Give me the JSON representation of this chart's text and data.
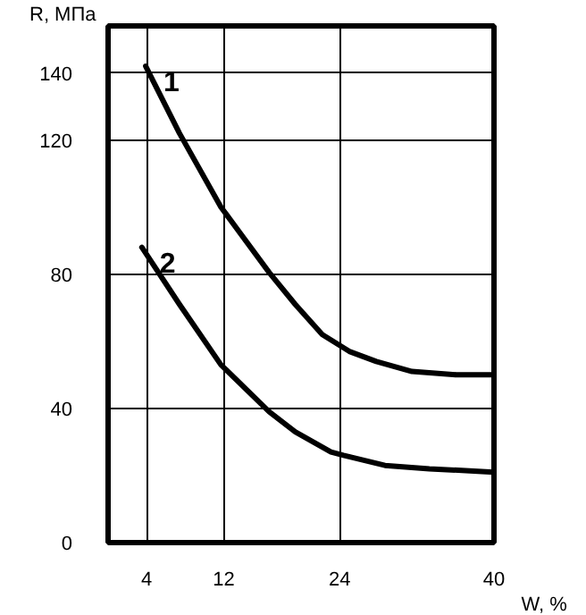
{
  "chart_data": {
    "type": "line",
    "xlabel": "W,  %",
    "ylabel": "R,  МПа",
    "xlim": [
      0,
      40
    ],
    "ylim": [
      0,
      154
    ],
    "xticks": [
      4,
      12,
      24,
      40
    ],
    "yticks": [
      0,
      40,
      80,
      120,
      140
    ],
    "grid": true,
    "line_style": "solid",
    "series": [
      {
        "name": "1",
        "color": "#000000",
        "x": [
          3.9,
          7.4,
          11.7,
          16.7,
          19.4,
          22.2,
          25,
          27.8,
          31.5,
          36.1,
          40
        ],
        "values": [
          142,
          122,
          100,
          80.5,
          71,
          62,
          57,
          54,
          51,
          50,
          50
        ]
      },
      {
        "name": "2",
        "color": "#000000",
        "x": [
          3.5,
          7.4,
          11.7,
          16.7,
          19.4,
          23.1,
          24.4,
          28.7,
          33.3,
          40
        ],
        "values": [
          88,
          71,
          53,
          39,
          33,
          27,
          26,
          23,
          22,
          21
        ]
      }
    ]
  }
}
